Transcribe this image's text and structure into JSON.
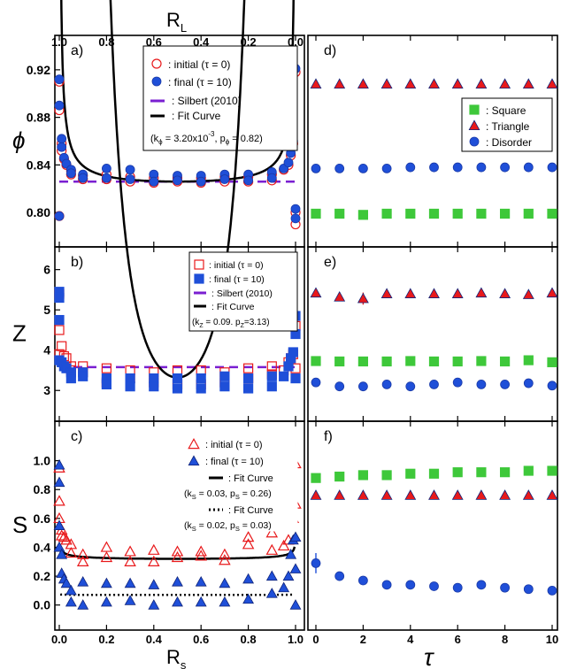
{
  "figure": {
    "top_axis_label": "R",
    "top_axis_label_sub": "L",
    "top_ticks": [
      "1.0",
      "0.8",
      "0.6",
      "0.4",
      "0.2",
      "0.0"
    ],
    "bottom_axis_label": "R",
    "bottom_axis_label_sub": "s",
    "bottom_ticks": [
      "0.0",
      "0.2",
      "0.4",
      "0.6",
      "0.8",
      "1.0"
    ],
    "tau_label": "τ",
    "tau_ticks": [
      "0",
      "2",
      "4",
      "6",
      "8",
      "10"
    ]
  },
  "colors": {
    "red": "#e8191b",
    "blue": "#1f4fd8",
    "green": "#3ec83a",
    "purple": "#7a1fd1",
    "black": "#000000"
  },
  "chart_data": [
    {
      "id": "a",
      "type": "scatter",
      "panel_label": "a)",
      "ylabel": "ϕ",
      "xlim": [
        0,
        1
      ],
      "ylim": [
        0.78,
        0.94
      ],
      "yticks": [
        "0.80",
        "0.84",
        "0.88",
        "0.92"
      ],
      "legend": [
        "○ : initial (τ = 0)",
        "● : final (τ = 10)",
        ": Silbert (2010)",
        ": Fit Curve"
      ],
      "fit_params": [
        "(k",
        "ϕ",
        " = 3.20x10",
        "-3",
        ", p",
        "ϕ",
        " = 0.82)"
      ],
      "silbert_y": 0.826,
      "fit": {
        "c": 0.826,
        "k": 0.0032,
        "p": 0.82
      },
      "series": [
        {
          "name": "initial (τ = 0)",
          "marker": "open-circle",
          "x": [
            0,
            0,
            0,
            0.01,
            0.01,
            0.02,
            0.03,
            0.05,
            0.05,
            0.1,
            0.1,
            0.2,
            0.2,
            0.3,
            0.3,
            0.4,
            0.4,
            0.5,
            0.5,
            0.6,
            0.6,
            0.7,
            0.7,
            0.8,
            0.8,
            0.9,
            0.9,
            0.95,
            0.97,
            0.98,
            0.99,
            1.0,
            1.0,
            1.0
          ],
          "y": [
            0.91,
            0.886,
            0.797,
            0.858,
            0.852,
            0.845,
            0.84,
            0.835,
            0.832,
            0.831,
            0.828,
            0.832,
            0.828,
            0.83,
            0.826,
            0.829,
            0.825,
            0.829,
            0.826,
            0.829,
            0.825,
            0.83,
            0.826,
            0.83,
            0.826,
            0.832,
            0.827,
            0.836,
            0.84,
            0.848,
            0.858,
            0.918,
            0.8,
            0.79
          ]
        },
        {
          "name": "final (τ = 10)",
          "marker": "filled-circle",
          "x": [
            0,
            0,
            0,
            0.01,
            0.01,
            0.02,
            0.03,
            0.05,
            0.05,
            0.1,
            0.1,
            0.2,
            0.2,
            0.3,
            0.3,
            0.4,
            0.4,
            0.5,
            0.5,
            0.6,
            0.6,
            0.7,
            0.7,
            0.8,
            0.8,
            0.9,
            0.9,
            0.95,
            0.97,
            0.98,
            0.99,
            1.0,
            1.0,
            1.0
          ],
          "y": [
            0.912,
            0.89,
            0.797,
            0.862,
            0.855,
            0.846,
            0.841,
            0.836,
            0.833,
            0.832,
            0.829,
            0.837,
            0.829,
            0.836,
            0.828,
            0.832,
            0.826,
            0.831,
            0.827,
            0.831,
            0.826,
            0.832,
            0.828,
            0.832,
            0.827,
            0.834,
            0.829,
            0.837,
            0.842,
            0.85,
            0.86,
            0.921,
            0.803,
            0.795
          ]
        }
      ]
    },
    {
      "id": "b",
      "type": "scatter",
      "panel_label": "b)",
      "ylabel": "Z",
      "xlim": [
        0,
        1
      ],
      "ylim": [
        2.5,
        6.3
      ],
      "yticks": [
        "3",
        "4",
        "5",
        "6"
      ],
      "legend": [
        "□ : initial (τ = 0)",
        "■ : final (τ = 10)",
        ": Silbert (2010)",
        ": Fit Curve"
      ],
      "fit_params": [
        "(k",
        "Z",
        " = 0.09. p",
        "Z",
        "=3.13)"
      ],
      "silbert_y": 3.58,
      "fit": {
        "c": 3.32,
        "k": 0.09,
        "p": 3.13
      },
      "series": [
        {
          "name": "initial (τ = 0)",
          "marker": "open-square",
          "x": [
            0,
            0,
            0,
            0.01,
            0.02,
            0.03,
            0.05,
            0.05,
            0.1,
            0.1,
            0.2,
            0.2,
            0.3,
            0.3,
            0.4,
            0.4,
            0.5,
            0.5,
            0.6,
            0.6,
            0.7,
            0.7,
            0.8,
            0.8,
            0.9,
            0.9,
            0.95,
            0.97,
            0.98,
            0.99,
            1.0,
            1.0
          ],
          "y": [
            5.4,
            4.5,
            3.9,
            4.1,
            3.85,
            3.8,
            3.6,
            3.5,
            3.6,
            3.45,
            3.55,
            3.2,
            3.5,
            3.3,
            3.45,
            3.2,
            3.5,
            3.15,
            3.5,
            3.15,
            3.45,
            3.2,
            3.55,
            3.3,
            3.6,
            3.4,
            3.5,
            3.7,
            3.8,
            3.9,
            4.6,
            3.55
          ]
        },
        {
          "name": "final (τ = 10)",
          "marker": "filled-square",
          "x": [
            0,
            0,
            0,
            0,
            0.01,
            0.02,
            0.03,
            0.05,
            0.05,
            0.1,
            0.1,
            0.2,
            0.2,
            0.3,
            0.3,
            0.4,
            0.4,
            0.5,
            0.5,
            0.6,
            0.6,
            0.7,
            0.7,
            0.8,
            0.8,
            0.9,
            0.9,
            0.95,
            0.97,
            0.98,
            0.99,
            1.0,
            1.0,
            1.0
          ],
          "y": [
            5.45,
            5.3,
            4.75,
            3.75,
            3.7,
            3.6,
            3.55,
            3.45,
            3.3,
            3.45,
            3.35,
            3.3,
            3.15,
            3.3,
            3.1,
            3.3,
            3.1,
            3.3,
            3.05,
            3.3,
            3.05,
            3.35,
            3.1,
            3.3,
            3.05,
            3.35,
            3.1,
            3.35,
            3.6,
            3.8,
            3.95,
            4.85,
            4.4,
            3.3
          ]
        }
      ]
    },
    {
      "id": "c",
      "type": "scatter",
      "panel_label": "c)",
      "ylabel": "S",
      "xlim": [
        0,
        1
      ],
      "ylim": [
        -0.1,
        1.2
      ],
      "yticks": [
        "0.0",
        "0.2",
        "0.4",
        "0.6",
        "0.8",
        "1.0"
      ],
      "xlabel": "R",
      "legend": [
        "△ : initial (τ = 0)",
        "▲ : final (τ = 10)",
        ": Fit Curve",
        ": Fit Curve"
      ],
      "fit_params_1": [
        "(k",
        "S",
        " = 0.03, p",
        "S",
        " = 0.26)"
      ],
      "fit_params_2": [
        "(k",
        "S",
        " = 0.02, p",
        "S",
        " = 0.03)"
      ],
      "fit1": {
        "c": 0.32,
        "k": 0.03,
        "p": 0.26
      },
      "fit2": {
        "c": 0.07,
        "k": 0.02,
        "p": 0.03
      },
      "series": [
        {
          "name": "initial (τ = 0)",
          "marker": "open-triangle",
          "x": [
            0,
            0,
            0,
            0.01,
            0.01,
            0.02,
            0.03,
            0.05,
            0.05,
            0.1,
            0.1,
            0.2,
            0.2,
            0.3,
            0.3,
            0.4,
            0.4,
            0.5,
            0.5,
            0.6,
            0.6,
            0.7,
            0.7,
            0.8,
            0.8,
            0.9,
            0.9,
            0.95,
            0.97,
            0.98,
            0.99,
            1.0,
            1.0
          ],
          "y": [
            0.95,
            0.72,
            0.6,
            0.52,
            0.48,
            0.47,
            0.45,
            0.42,
            0.36,
            0.35,
            0.3,
            0.4,
            0.33,
            0.37,
            0.3,
            0.38,
            0.3,
            0.37,
            0.33,
            0.37,
            0.34,
            0.35,
            0.31,
            0.47,
            0.42,
            0.5,
            0.38,
            0.41,
            0.45,
            0.55,
            0.6,
            0.98,
            0.7
          ]
        },
        {
          "name": "final (τ = 10)",
          "marker": "filled-triangle",
          "x": [
            0,
            0,
            0,
            0,
            0.01,
            0.01,
            0.02,
            0.03,
            0.05,
            0.05,
            0.1,
            0.1,
            0.2,
            0.2,
            0.3,
            0.3,
            0.4,
            0.4,
            0.5,
            0.5,
            0.6,
            0.6,
            0.7,
            0.7,
            0.8,
            0.8,
            0.9,
            0.9,
            0.95,
            0.97,
            0.98,
            0.99,
            1.0,
            1.0,
            1.0
          ],
          "y": [
            0.97,
            0.85,
            0.55,
            0.4,
            0.35,
            0.22,
            0.18,
            0.15,
            0.1,
            0.02,
            0.16,
            0.0,
            0.15,
            0.02,
            0.15,
            0.03,
            0.14,
            0.0,
            0.16,
            0.02,
            0.16,
            0.02,
            0.15,
            0.02,
            0.18,
            0.04,
            0.2,
            0.08,
            0.12,
            0.2,
            0.35,
            0.45,
            0.47,
            0.25,
            0.0
          ]
        }
      ]
    },
    {
      "id": "d",
      "type": "scatter",
      "panel_label": "d)",
      "ylabel": "ϕ",
      "xlim": [
        0,
        10
      ],
      "ylim": [
        0.78,
        0.94
      ],
      "legend": [
        ": Square",
        ": Triangle",
        ": Disorder"
      ],
      "series": [
        {
          "name": "Square",
          "marker": "filled-square",
          "x": [
            0,
            1,
            2,
            3,
            4,
            5,
            6,
            7,
            8,
            9,
            10
          ],
          "y": [
            0.799,
            0.799,
            0.798,
            0.799,
            0.799,
            0.799,
            0.799,
            0.799,
            0.799,
            0.799,
            0.799
          ]
        },
        {
          "name": "Triangle",
          "marker": "filled-triangle",
          "x": [
            0,
            1,
            2,
            3,
            4,
            5,
            6,
            7,
            8,
            9,
            10
          ],
          "y": [
            0.908,
            0.908,
            0.908,
            0.908,
            0.908,
            0.908,
            0.908,
            0.908,
            0.908,
            0.908,
            0.908
          ]
        },
        {
          "name": "Disorder",
          "marker": "filled-circle",
          "x": [
            0,
            1,
            2,
            3,
            4,
            5,
            6,
            7,
            8,
            9,
            10
          ],
          "y": [
            0.837,
            0.837,
            0.837,
            0.837,
            0.838,
            0.838,
            0.838,
            0.838,
            0.838,
            0.838,
            0.838
          ]
        }
      ]
    },
    {
      "id": "e",
      "type": "scatter",
      "panel_label": "e)",
      "ylabel": "Z",
      "xlim": [
        0,
        10
      ],
      "ylim": [
        2.5,
        6.3
      ],
      "series": [
        {
          "name": "Square",
          "marker": "filled-square",
          "x": [
            0,
            1,
            2,
            3,
            4,
            5,
            6,
            7,
            8,
            9,
            10
          ],
          "y": [
            3.73,
            3.72,
            3.72,
            3.72,
            3.73,
            3.72,
            3.72,
            3.73,
            3.72,
            3.75,
            3.7
          ]
        },
        {
          "name": "Triangle",
          "marker": "filled-triangle",
          "x": [
            0,
            1,
            2,
            3,
            4,
            5,
            6,
            7,
            8,
            9,
            10
          ],
          "y": [
            5.42,
            5.32,
            5.28,
            5.4,
            5.4,
            5.4,
            5.4,
            5.42,
            5.4,
            5.38,
            5.42
          ],
          "err": [
            0,
            0,
            0.15,
            0,
            0,
            0,
            0,
            0,
            0,
            0.1,
            0
          ]
        },
        {
          "name": "Disorder",
          "marker": "filled-circle",
          "x": [
            0,
            1,
            2,
            3,
            4,
            5,
            6,
            7,
            8,
            9,
            10
          ],
          "y": [
            3.2,
            3.1,
            3.1,
            3.15,
            3.1,
            3.15,
            3.2,
            3.15,
            3.15,
            3.18,
            3.12
          ]
        }
      ]
    },
    {
      "id": "f",
      "type": "scatter",
      "panel_label": "f)",
      "ylabel": "S",
      "xlim": [
        0,
        10
      ],
      "ylim": [
        -0.1,
        1.2
      ],
      "xticks": [
        "0",
        "2",
        "4",
        "6",
        "8",
        "10"
      ],
      "xlabel": "τ",
      "series": [
        {
          "name": "Square",
          "marker": "filled-square",
          "x": [
            0,
            1,
            2,
            3,
            4,
            5,
            6,
            7,
            8,
            9,
            10
          ],
          "y": [
            0.88,
            0.89,
            0.9,
            0.9,
            0.91,
            0.91,
            0.92,
            0.92,
            0.92,
            0.93,
            0.93
          ]
        },
        {
          "name": "Triangle",
          "marker": "filled-triangle",
          "x": [
            0,
            1,
            2,
            3,
            4,
            5,
            6,
            7,
            8,
            9,
            10
          ],
          "y": [
            0.76,
            0.76,
            0.76,
            0.76,
            0.76,
            0.76,
            0.76,
            0.76,
            0.76,
            0.76,
            0.76
          ]
        },
        {
          "name": "Disorder",
          "marker": "filled-circle",
          "x": [
            0,
            1,
            2,
            3,
            4,
            5,
            6,
            7,
            8,
            9,
            10
          ],
          "y": [
            0.29,
            0.2,
            0.17,
            0.14,
            0.14,
            0.13,
            0.12,
            0.14,
            0.12,
            0.11,
            0.1
          ],
          "err": [
            0.07,
            0,
            0,
            0,
            0,
            0,
            0,
            0,
            0,
            0,
            0
          ]
        }
      ]
    }
  ]
}
